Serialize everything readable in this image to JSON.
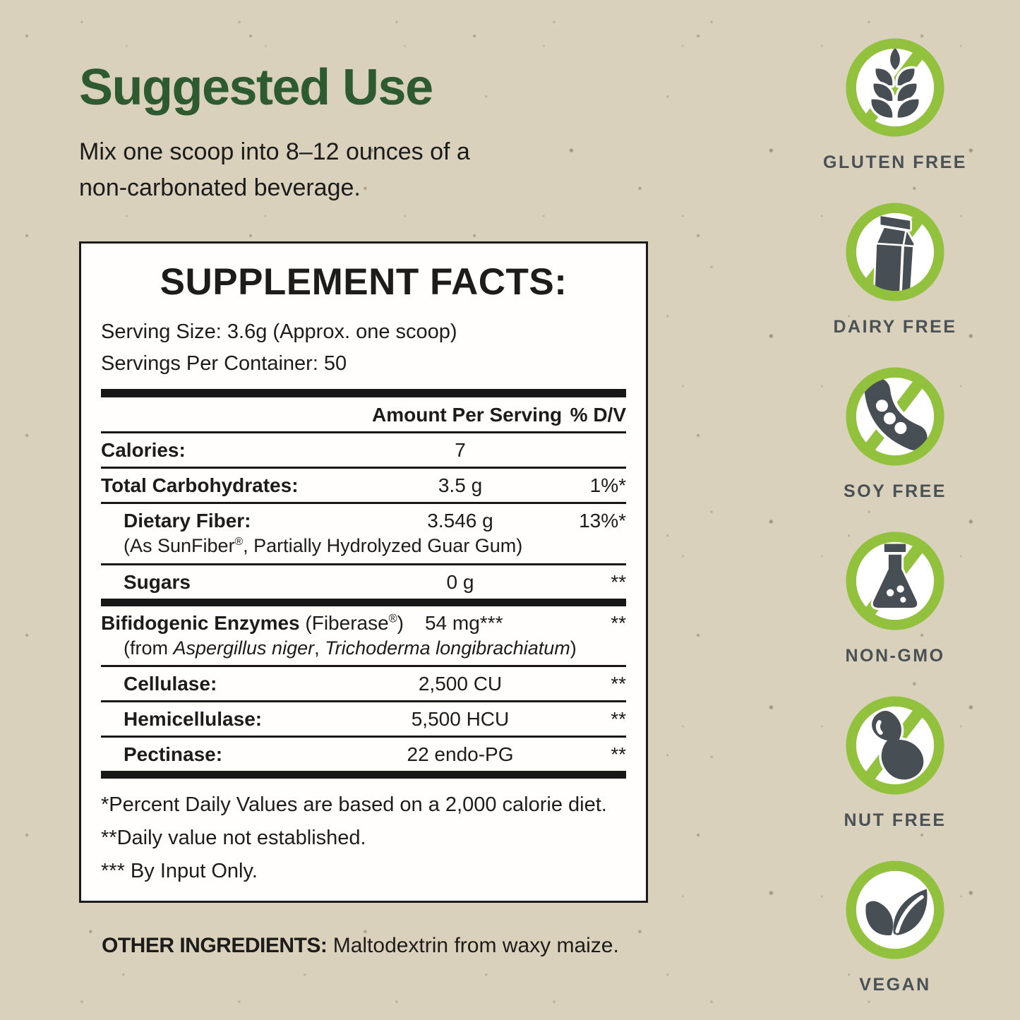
{
  "theme": {
    "background": "#d9d1bc",
    "heading_green": "#2d5a30",
    "badge_green": "#92c13d",
    "icon_gray": "#474f54",
    "label_gray": "#4a5156"
  },
  "suggested_use": {
    "title": "Suggested Use",
    "body_line1": "Mix one scoop into 8–12 ounces of a",
    "body_line2": "non-carbonated beverage."
  },
  "supplement_facts": {
    "title": "SUPPLEMENT FACTS:",
    "serving_size": "Serving Size: 3.6g (Approx. one scoop)",
    "servings_per_container": "Servings Per Container: 50",
    "columns": {
      "amount": "Amount Per Serving",
      "dv": "% D/V"
    },
    "rows": [
      {
        "name_parts": [
          {
            "text": "Calories:",
            "bold": true
          }
        ],
        "amount": "7",
        "dv": "",
        "indent": false,
        "divider_after": "thin"
      },
      {
        "name_parts": [
          {
            "text": "Total Carbohydrates:",
            "bold": true
          }
        ],
        "amount": "3.5 g",
        "dv": "1%*",
        "indent": false,
        "divider_after": "thin"
      },
      {
        "name_parts": [
          {
            "text": "Dietary Fiber:",
            "bold": true
          }
        ],
        "amount": "3.546 g",
        "dv": "13%*",
        "indent": true,
        "sub_parts": [
          {
            "text": "(As SunFiber"
          },
          {
            "text": "®",
            "sup": true
          },
          {
            "text": ", Partially Hydrolyzed Guar Gum)"
          }
        ],
        "divider_after": "thin"
      },
      {
        "name_parts": [
          {
            "text": "Sugars",
            "bold": true
          }
        ],
        "amount": "0 g",
        "dv": "**",
        "indent": true,
        "divider_after": "thick"
      },
      {
        "name_parts": [
          {
            "text": "Bifidogenic Enzymes",
            "bold": true
          },
          {
            "text": " (Fiberase"
          },
          {
            "text": "®",
            "sup": true
          },
          {
            "text": ")"
          }
        ],
        "amount": "54 mg***",
        "dv": "**",
        "indent": false,
        "inline_amount": true,
        "sub_parts": [
          {
            "text": "(from "
          },
          {
            "text": "Aspergillus niger",
            "italic": true
          },
          {
            "text": ", "
          },
          {
            "text": "Trichoderma longibrachiatum",
            "italic": true
          },
          {
            "text": ")"
          }
        ],
        "sub_indent": true,
        "divider_after": "thin"
      },
      {
        "name_parts": [
          {
            "text": "Cellulase:",
            "bold": true
          }
        ],
        "amount": "2,500 CU",
        "dv": "**",
        "indent": true,
        "divider_after": "thin"
      },
      {
        "name_parts": [
          {
            "text": "Hemicellulase:",
            "bold": true
          }
        ],
        "amount": "5,500 HCU",
        "dv": "**",
        "indent": true,
        "divider_after": "thin"
      },
      {
        "name_parts": [
          {
            "text": "Pectinase:",
            "bold": true
          }
        ],
        "amount": "22 endo-PG",
        "dv": "**",
        "indent": true,
        "divider_after": "thick"
      }
    ],
    "footnotes": [
      "*Percent Daily Values are based on a 2,000 calorie diet.",
      "**Daily value not established.",
      "*** By Input Only."
    ]
  },
  "other_ingredients": {
    "label": "OTHER INGREDIENTS:",
    "value": "Maltodextrin from waxy maize."
  },
  "badges": [
    {
      "id": "gluten-free",
      "label": "GLUTEN FREE",
      "icon": "wheat-icon",
      "slashed": true
    },
    {
      "id": "dairy-free",
      "label": "DAIRY FREE",
      "icon": "milk-carton-icon",
      "slashed": true
    },
    {
      "id": "soy-free",
      "label": "SOY FREE",
      "icon": "soybean-pod-icon",
      "slashed": true
    },
    {
      "id": "non-gmo",
      "label": "NON-GMO",
      "icon": "chemistry-flask-icon",
      "slashed": true
    },
    {
      "id": "nut-free",
      "label": "NUT FREE",
      "icon": "peanut-icon",
      "slashed": true
    },
    {
      "id": "vegan",
      "label": "VEGAN",
      "icon": "leaves-icon",
      "slashed": false
    }
  ]
}
